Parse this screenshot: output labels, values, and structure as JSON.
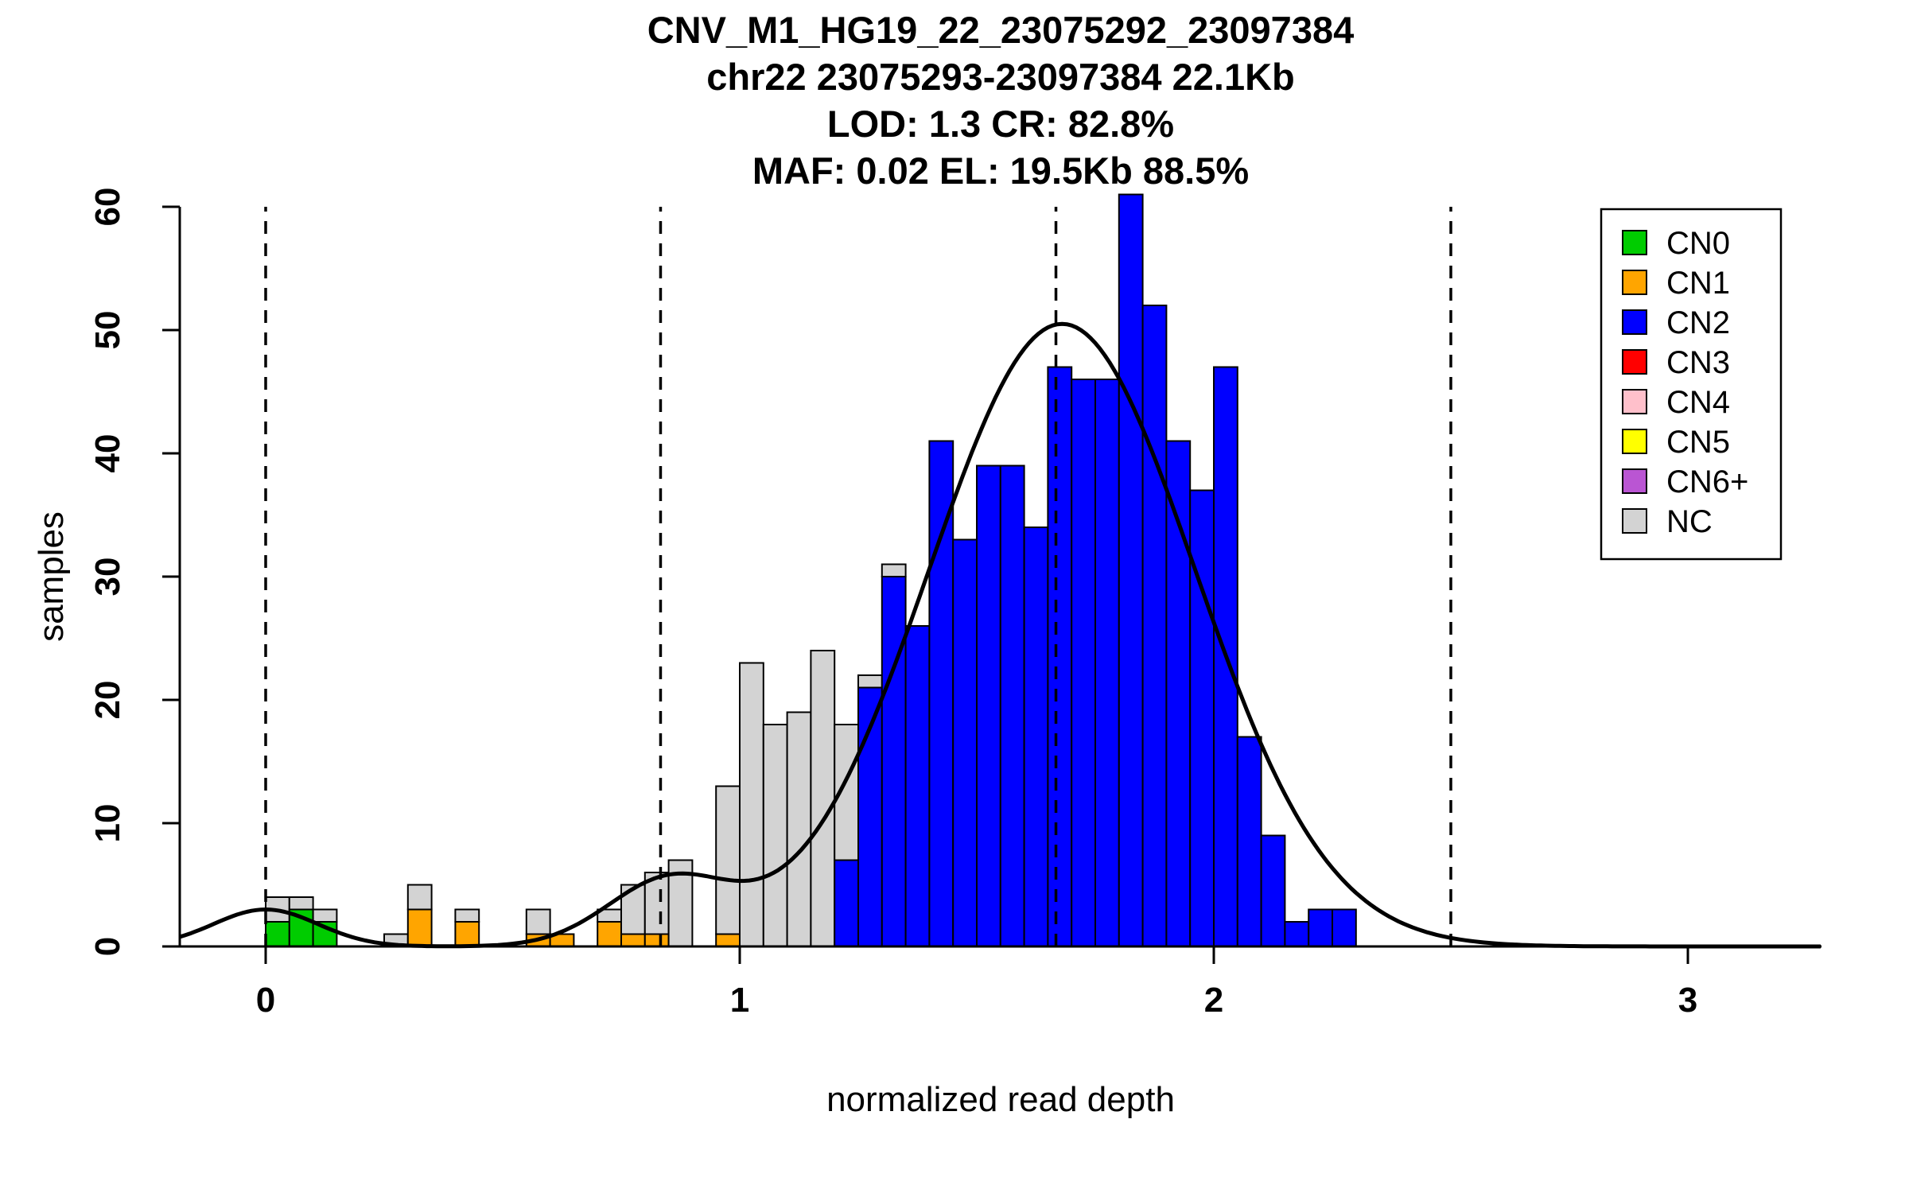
{
  "chart_data": {
    "type": "bar",
    "stacked": true,
    "title": "CNV_M1_HG19_22_23075292_23097384",
    "title_lines": [
      "CNV_M1_HG19_22_23075292_23097384",
      "chr22 23075293-23097384 22.1Kb",
      "LOD: 1.3 CR: 82.8%",
      "MAF: 0.02 EL: 19.5Kb 88.5%"
    ],
    "xlabel": "normalized read depth",
    "ylabel": "samples",
    "xlim": [
      -0.18,
      3.28
    ],
    "ylim": [
      0,
      62
    ],
    "x_ticks": [
      0,
      1,
      2,
      3
    ],
    "y_ticks": [
      0,
      10,
      20,
      30,
      40,
      50,
      60
    ],
    "bin_width": 0.05,
    "grid": false,
    "legend_position": "top-right",
    "colors": {
      "CN0": "#00CC00",
      "CN1": "#FFA500",
      "CN2": "#0000FF",
      "CN3": "#FF0000",
      "CN4": "#FFC0CB",
      "CN5": "#FFFF00",
      "CN6+": "#BA55D3",
      "NC": "#D3D3D3"
    },
    "legend_items": [
      "CN0",
      "CN1",
      "CN2",
      "CN3",
      "CN4",
      "CN5",
      "CN6+",
      "NC"
    ],
    "threshold_lines_x": [
      0,
      0.833,
      1.667,
      2.5
    ],
    "bars": [
      {
        "x": 0.0,
        "stack": [
          [
            "CN0",
            2
          ],
          [
            "NC",
            2
          ]
        ]
      },
      {
        "x": 0.05,
        "stack": [
          [
            "CN0",
            3
          ],
          [
            "NC",
            1
          ]
        ]
      },
      {
        "x": 0.1,
        "stack": [
          [
            "CN0",
            2
          ],
          [
            "NC",
            1
          ]
        ]
      },
      {
        "x": 0.25,
        "stack": [
          [
            "NC",
            1
          ]
        ]
      },
      {
        "x": 0.3,
        "stack": [
          [
            "CN1",
            3
          ],
          [
            "NC",
            2
          ]
        ]
      },
      {
        "x": 0.4,
        "stack": [
          [
            "CN1",
            2
          ],
          [
            "NC",
            1
          ]
        ]
      },
      {
        "x": 0.55,
        "stack": [
          [
            "CN1",
            1
          ],
          [
            "NC",
            2
          ]
        ]
      },
      {
        "x": 0.6,
        "stack": [
          [
            "CN1",
            1
          ]
        ]
      },
      {
        "x": 0.7,
        "stack": [
          [
            "CN1",
            2
          ],
          [
            "NC",
            1
          ]
        ]
      },
      {
        "x": 0.75,
        "stack": [
          [
            "CN1",
            1
          ],
          [
            "NC",
            4
          ]
        ]
      },
      {
        "x": 0.8,
        "stack": [
          [
            "CN1",
            1
          ],
          [
            "NC",
            5
          ]
        ]
      },
      {
        "x": 0.85,
        "stack": [
          [
            "NC",
            7
          ]
        ]
      },
      {
        "x": 0.95,
        "stack": [
          [
            "CN1",
            1
          ],
          [
            "NC",
            12
          ]
        ]
      },
      {
        "x": 1.0,
        "stack": [
          [
            "NC",
            23
          ]
        ]
      },
      {
        "x": 1.05,
        "stack": [
          [
            "NC",
            18
          ]
        ]
      },
      {
        "x": 1.1,
        "stack": [
          [
            "NC",
            19
          ]
        ]
      },
      {
        "x": 1.15,
        "stack": [
          [
            "NC",
            24
          ]
        ]
      },
      {
        "x": 1.2,
        "stack": [
          [
            "CN2",
            7
          ],
          [
            "NC",
            11
          ]
        ]
      },
      {
        "x": 1.25,
        "stack": [
          [
            "CN2",
            21
          ],
          [
            "NC",
            1
          ]
        ]
      },
      {
        "x": 1.3,
        "stack": [
          [
            "CN2",
            30
          ],
          [
            "NC",
            1
          ]
        ]
      },
      {
        "x": 1.35,
        "stack": [
          [
            "CN2",
            26
          ]
        ]
      },
      {
        "x": 1.4,
        "stack": [
          [
            "CN2",
            41
          ]
        ]
      },
      {
        "x": 1.45,
        "stack": [
          [
            "CN2",
            33
          ]
        ]
      },
      {
        "x": 1.5,
        "stack": [
          [
            "CN2",
            39
          ]
        ]
      },
      {
        "x": 1.55,
        "stack": [
          [
            "CN2",
            39
          ]
        ]
      },
      {
        "x": 1.6,
        "stack": [
          [
            "CN2",
            34
          ]
        ]
      },
      {
        "x": 1.65,
        "stack": [
          [
            "CN2",
            47
          ]
        ]
      },
      {
        "x": 1.7,
        "stack": [
          [
            "CN2",
            46
          ]
        ]
      },
      {
        "x": 1.75,
        "stack": [
          [
            "CN2",
            46
          ]
        ]
      },
      {
        "x": 1.8,
        "stack": [
          [
            "CN2",
            61
          ]
        ]
      },
      {
        "x": 1.85,
        "stack": [
          [
            "CN2",
            52
          ]
        ]
      },
      {
        "x": 1.9,
        "stack": [
          [
            "CN2",
            41
          ]
        ]
      },
      {
        "x": 1.95,
        "stack": [
          [
            "CN2",
            37
          ]
        ]
      },
      {
        "x": 2.0,
        "stack": [
          [
            "CN2",
            47
          ]
        ]
      },
      {
        "x": 2.05,
        "stack": [
          [
            "CN2",
            17
          ]
        ]
      },
      {
        "x": 2.1,
        "stack": [
          [
            "CN2",
            9
          ]
        ]
      },
      {
        "x": 2.15,
        "stack": [
          [
            "CN2",
            2
          ]
        ]
      },
      {
        "x": 2.2,
        "stack": [
          [
            "CN2",
            3
          ]
        ]
      },
      {
        "x": 2.25,
        "stack": [
          [
            "CN2",
            3
          ]
        ]
      }
    ],
    "density_curve": {
      "gaussians": [
        {
          "amp": 3.0,
          "mean": 0.0,
          "sd": 0.11
        },
        {
          "amp": 5.2,
          "mean": 0.85,
          "sd": 0.13
        },
        {
          "amp": 50.5,
          "mean": 1.68,
          "sd": 0.28
        }
      ]
    }
  }
}
